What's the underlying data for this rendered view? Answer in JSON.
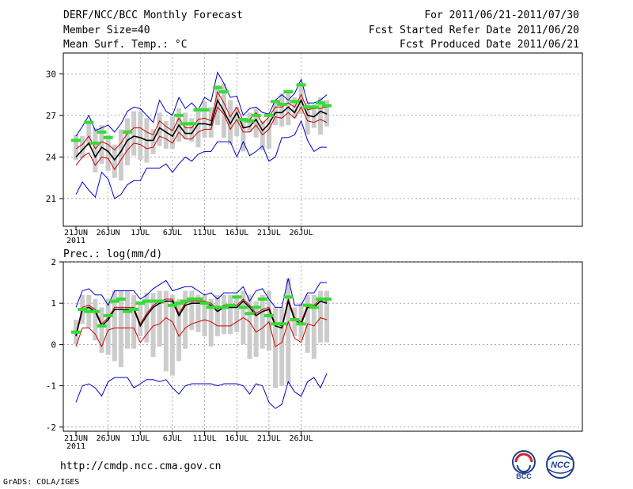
{
  "header": {
    "title": "DERF/NCC/BCC Monthly Forecast",
    "member_size": "Member Size=40",
    "panel1_label": "Mean Surf. Temp.: °C",
    "period": "For 2011/06/21-2011/07/30",
    "fcst_started": "Fcst Started Refer Date 2011/06/20",
    "fcst_produced": "Fcst Produced Date 2011/06/21"
  },
  "footer": {
    "url": "http://cmdp.ncc.cma.gov.cn",
    "grads": "GrADS: COLA/IGES",
    "logo1_text": "BCC",
    "logo2_text": "NCC"
  },
  "colors": {
    "max_min": "#0000cc",
    "quartile": "#cc0000",
    "mean": "#000000",
    "obs": "#33dd33",
    "box": "#cccccc"
  },
  "chart_data": [
    {
      "type": "line",
      "title": "Mean Surf. Temp.: °C",
      "x_tick_labels": [
        "21JUN",
        "26JUN",
        "1JUL",
        "6JUL",
        "11JUL",
        "16JUL",
        "21JUL",
        "26JUL"
      ],
      "x_year_label": "2011",
      "ylim": [
        19,
        31.5
      ],
      "y_ticks": [
        21,
        24,
        27,
        30
      ],
      "grid": true,
      "series": [
        {
          "name": "max",
          "values": [
            25.5,
            26.2,
            27.0,
            25.9,
            26.1,
            26.3,
            25.8,
            26.4,
            27.3,
            27.6,
            27.5,
            27.0,
            26.5,
            28.1,
            27.3,
            27.0,
            28.3,
            27.5,
            27.9,
            27.4,
            28.3,
            28.0,
            30.1,
            29.3,
            28.3,
            28.4,
            27.0,
            27.5,
            27.6,
            27.2,
            27.1,
            28.1,
            28.5,
            28.1,
            28.6,
            29.6,
            27.9,
            27.9,
            28.1,
            28.5
          ]
        },
        {
          "name": "upper_quartile",
          "values": [
            24.6,
            24.9,
            25.5,
            24.6,
            25.1,
            24.9,
            24.5,
            25.0,
            25.7,
            26.1,
            26.1,
            25.8,
            25.6,
            26.6,
            26.2,
            25.9,
            26.8,
            26.1,
            26.1,
            26.7,
            26.8,
            26.6,
            28.7,
            27.9,
            26.9,
            27.6,
            26.6,
            26.7,
            27.2,
            26.4,
            26.9,
            27.6,
            27.6,
            27.9,
            27.6,
            28.5,
            27.4,
            27.5,
            27.5,
            27.6
          ]
        },
        {
          "name": "mean",
          "values": [
            24.0,
            24.5,
            25.0,
            24.0,
            24.7,
            24.4,
            23.8,
            24.4,
            25.2,
            25.5,
            25.4,
            25.2,
            25.2,
            26.1,
            25.8,
            25.5,
            26.3,
            25.7,
            25.7,
            26.4,
            26.4,
            26.3,
            28.1,
            27.3,
            26.4,
            27.2,
            26.1,
            26.2,
            26.7,
            25.9,
            26.4,
            27.2,
            27.2,
            27.6,
            27.2,
            28.1,
            27.0,
            26.9,
            27.3,
            27.1
          ]
        },
        {
          "name": "lower_quartile",
          "values": [
            23.4,
            24.0,
            24.3,
            23.4,
            24.0,
            23.9,
            23.1,
            23.8,
            24.5,
            25.0,
            24.9,
            24.6,
            24.7,
            25.5,
            25.3,
            25.0,
            25.8,
            25.3,
            25.3,
            25.8,
            26.0,
            26.0,
            27.6,
            27.1,
            26.0,
            26.7,
            25.8,
            25.8,
            26.3,
            25.6,
            26.0,
            26.9,
            26.8,
            27.2,
            26.8,
            27.6,
            26.6,
            26.5,
            26.7,
            26.5
          ]
        },
        {
          "name": "min",
          "values": [
            21.3,
            22.2,
            21.6,
            21.1,
            22.9,
            22.4,
            21.0,
            21.3,
            22.0,
            22.3,
            22.3,
            23.2,
            23.2,
            23.2,
            23.5,
            22.9,
            23.5,
            24.0,
            23.7,
            24.2,
            24.4,
            24.4,
            25.1,
            25.1,
            25.1,
            24.0,
            25.1,
            24.1,
            24.4,
            24.8,
            23.7,
            24.0,
            25.4,
            25.4,
            25.6,
            26.6,
            25.2,
            24.4,
            24.7,
            24.7
          ]
        },
        {
          "name": "observed",
          "values": [
            25.2,
            null,
            26.5,
            25.0,
            25.8,
            25.4,
            null,
            null,
            25.8,
            null,
            null,
            null,
            null,
            null,
            null,
            null,
            27.0,
            26.4,
            26.4,
            27.4,
            27.4,
            null,
            29.0,
            28.7,
            null,
            null,
            26.7,
            26.6,
            27.0,
            null,
            27.0,
            28.0,
            27.8,
            28.7,
            28.0,
            29.2,
            27.6,
            27.6,
            27.9,
            27.7
          ]
        },
        {
          "name": "box_top",
          "values": [
            25.6,
            25.5,
            26.6,
            26.1,
            26.3,
            25.6,
            24.9,
            26.0,
            26.8,
            27.3,
            27.3,
            26.8,
            26.0,
            27.2,
            26.6,
            26.9,
            27.5,
            27.2,
            26.8,
            27.3,
            28.0,
            27.6,
            29.2,
            29.3,
            28.1,
            27.6,
            26.8,
            27.2,
            27.5,
            26.6,
            26.8,
            28.0,
            28.6,
            28.6,
            28.3,
            29.3,
            27.9,
            27.8,
            28.3,
            28.1
          ]
        },
        {
          "name": "box_bottom",
          "values": [
            23.8,
            23.9,
            24.8,
            22.9,
            23.5,
            23.0,
            22.5,
            22.3,
            23.4,
            24.1,
            23.8,
            23.6,
            24.2,
            24.8,
            24.6,
            24.6,
            25.1,
            25.3,
            25.1,
            24.7,
            25.4,
            25.4,
            26.3,
            25.4,
            24.9,
            25.5,
            24.4,
            25.8,
            25.4,
            24.5,
            24.6,
            26.3,
            26.2,
            26.3,
            26.8,
            27.1,
            25.6,
            26.1,
            25.6,
            26.2
          ]
        }
      ]
    },
    {
      "type": "line",
      "title": "Prec.: log(mm/d)",
      "x_tick_labels": [
        "21JUN",
        "26JUN",
        "1JUL",
        "6JUL",
        "11JUL",
        "16JUL",
        "21JUL",
        "26JUL"
      ],
      "x_year_label": "2011",
      "ylim": [
        -2.1,
        2.0
      ],
      "y_ticks": [
        -2,
        -1,
        0,
        1,
        2
      ],
      "grid": true,
      "series": [
        {
          "name": "max",
          "values": [
            0.9,
            1.3,
            1.35,
            1.2,
            1.2,
            0.95,
            1.3,
            1.3,
            1.3,
            1.3,
            1.1,
            1.2,
            1.35,
            1.45,
            1.55,
            1.3,
            1.35,
            1.4,
            1.4,
            1.3,
            1.2,
            1.25,
            1.1,
            1.25,
            1.25,
            1.25,
            1.4,
            1.05,
            1.3,
            1.35,
            1.1,
            0.9,
            0.9,
            1.6,
            0.95,
            0.95,
            1.25,
            1.25,
            1.5,
            1.5
          ]
        },
        {
          "name": "upper_quartile",
          "values": [
            0.25,
            0.9,
            0.95,
            0.85,
            0.5,
            0.65,
            0.9,
            0.9,
            0.9,
            0.9,
            0.5,
            0.75,
            0.95,
            1.05,
            1.1,
            1.1,
            0.75,
            1.0,
            1.05,
            1.05,
            1.05,
            1.0,
            0.85,
            0.95,
            0.95,
            0.95,
            1.1,
            0.95,
            0.75,
            0.85,
            0.9,
            0.5,
            0.45,
            1.1,
            0.65,
            0.55,
            0.95,
            0.95,
            1.1,
            1.05
          ]
        },
        {
          "name": "mean",
          "values": [
            0.2,
            0.85,
            0.9,
            0.8,
            0.45,
            0.6,
            0.85,
            0.85,
            0.85,
            0.85,
            0.45,
            0.7,
            0.9,
            1.0,
            1.05,
            1.05,
            0.7,
            0.95,
            1.0,
            1.0,
            1.0,
            0.95,
            0.8,
            0.9,
            0.9,
            0.9,
            1.05,
            0.9,
            0.7,
            0.8,
            0.85,
            0.45,
            0.4,
            1.05,
            0.6,
            0.5,
            0.9,
            0.9,
            1.05,
            1.0
          ]
        },
        {
          "name": "lower_quartile",
          "values": [
            -0.05,
            0.4,
            0.4,
            0.25,
            -0.05,
            0.35,
            0.4,
            0.4,
            0.4,
            0.4,
            0.05,
            0.25,
            0.45,
            0.5,
            0.65,
            0.55,
            0.2,
            0.4,
            0.5,
            0.55,
            0.6,
            0.55,
            0.45,
            0.45,
            0.45,
            0.55,
            0.65,
            0.55,
            0.3,
            0.4,
            0.55,
            -0.05,
            0.05,
            0.55,
            0.15,
            0.05,
            0.5,
            0.45,
            0.65,
            0.6
          ]
        },
        {
          "name": "min",
          "values": [
            -1.4,
            -1.0,
            -0.95,
            -1.05,
            -1.25,
            -0.9,
            -0.8,
            -0.8,
            -0.8,
            -1.05,
            -0.95,
            -0.85,
            -0.85,
            -0.9,
            -0.85,
            -1.05,
            -1.2,
            -1.0,
            -0.95,
            -0.95,
            -0.95,
            -0.95,
            -1.0,
            -0.95,
            -0.95,
            -0.95,
            -1.0,
            -1.2,
            -0.95,
            -1.0,
            -1.4,
            -1.55,
            -1.45,
            -0.9,
            -1.15,
            -1.25,
            -0.9,
            -0.8,
            -1.05,
            -0.7
          ]
        },
        {
          "name": "observed",
          "values": [
            0.3,
            0.85,
            0.8,
            0.8,
            0.45,
            0.7,
            1.05,
            1.1,
            0.8,
            0.85,
            1.0,
            1.05,
            1.05,
            1.05,
            null,
            0.95,
            1.0,
            1.05,
            1.1,
            1.1,
            1.0,
            0.9,
            0.9,
            0.9,
            0.95,
            1.15,
            0.9,
            0.75,
            0.9,
            1.1,
            0.7,
            0.5,
            0.5,
            1.15,
            0.6,
            0.5,
            0.95,
            0.9,
            1.1,
            1.1
          ]
        },
        {
          "name": "box_top",
          "values": [
            0.6,
            1.2,
            1.2,
            1.1,
            0.9,
            1.1,
            1.3,
            1.3,
            1.3,
            1.2,
            1.05,
            1.25,
            1.25,
            1.3,
            1.3,
            1.2,
            1.1,
            1.3,
            1.3,
            1.2,
            1.2,
            1.1,
            1.2,
            1.2,
            1.2,
            1.2,
            1.3,
            1.2,
            1.05,
            1.2,
            1.3,
            0.9,
            0.9,
            1.6,
            0.9,
            1.0,
            1.2,
            1.2,
            1.3,
            1.3
          ]
        },
        {
          "name": "box_bottom",
          "values": [
            0.0,
            0.5,
            0.4,
            0.1,
            -0.2,
            -0.25,
            -0.4,
            -0.55,
            -0.1,
            -0.1,
            0.2,
            0.05,
            -0.3,
            -0.05,
            -0.65,
            -0.75,
            -0.4,
            -0.1,
            0.35,
            0.3,
            0.2,
            -0.05,
            0.2,
            0.25,
            0.25,
            0.3,
            0.0,
            -0.35,
            -0.3,
            -0.1,
            -0.15,
            -1.05,
            -1.0,
            -0.95,
            0.2,
            0.1,
            -0.2,
            -0.35,
            0.05,
            0.05
          ]
        }
      ]
    }
  ]
}
